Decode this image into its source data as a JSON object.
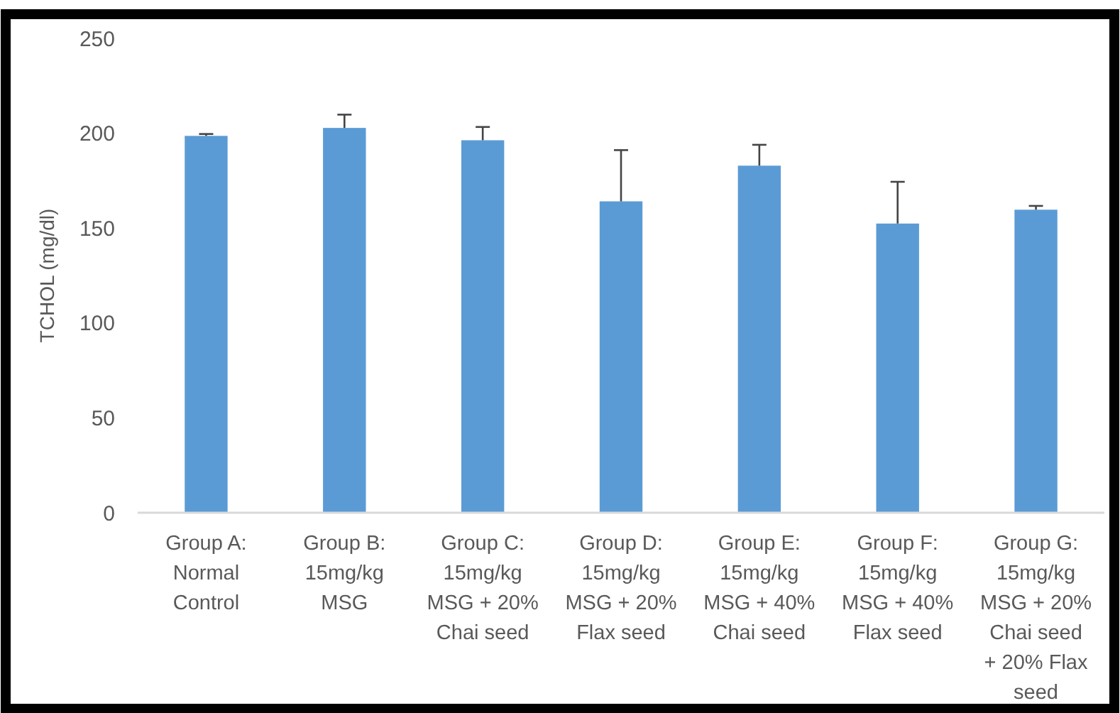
{
  "chart_data": {
    "type": "bar",
    "ylabel": "TCHOL (mg/dl)",
    "categories": [
      "Group A: Normal Control",
      "Group B: 15mg/kg MSG",
      "Group C: 15mg/kg MSG + 20% Chai seed",
      "Group D: 15mg/kg MSG + 20% Flax seed",
      "Group E: 15mg/kg MSG + 40% Chai seed",
      "Group F: 15mg/kg MSG + 40% Flax seed",
      "Group G: 15mg/kg MSG + 20% Chai seed + 20% Flax seed"
    ],
    "values": [
      198.6,
      202.8,
      196.3,
      164.1,
      182.9,
      152.4,
      159.7
    ],
    "errors": [
      1,
      7,
      7,
      27,
      11,
      22,
      2
    ],
    "color": "#5b9bd5",
    "ylim": [
      0,
      250
    ],
    "yticks": [
      0,
      50,
      100,
      150,
      200,
      250
    ],
    "grid": false
  }
}
